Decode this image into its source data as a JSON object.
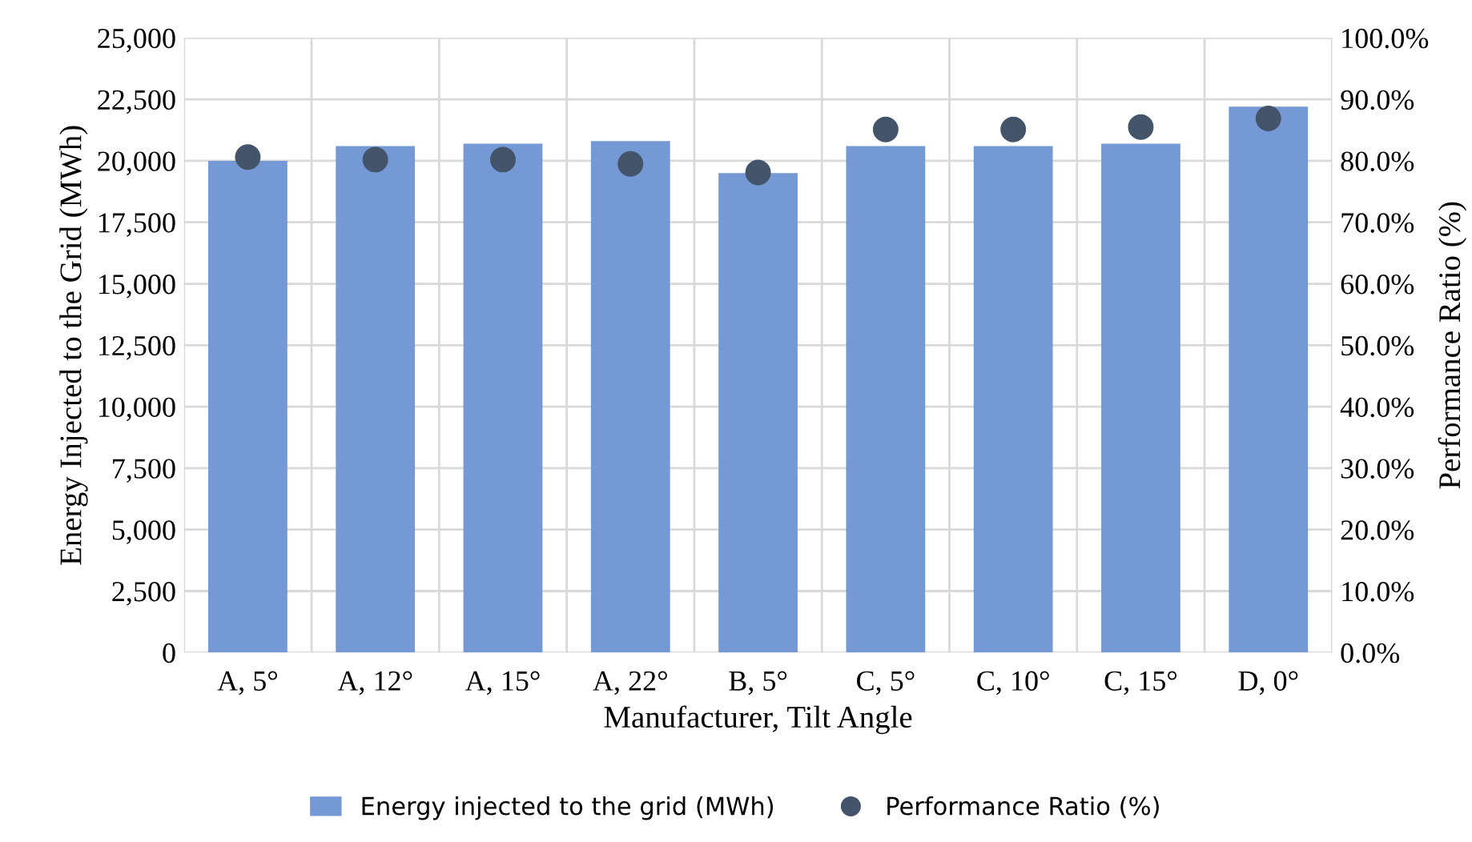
{
  "chart_data": {
    "type": "bar",
    "xlabel": "Manufacturer, Tilt Angle",
    "ylabel": "Energy Injected to the Grid (MWh)",
    "y2label": "Performance Ratio (%)",
    "categories": [
      "A, 5°",
      "A, 12°",
      "A, 15°",
      "A, 22°",
      "B, 5°",
      "C, 5°",
      "C, 10°",
      "C, 15°",
      "D, 0°"
    ],
    "series": [
      {
        "name": "Energy injected to the grid (MWh)",
        "color": "#7499d5",
        "values": [
          20000,
          20600,
          20700,
          20800,
          19500,
          20600,
          20600,
          20700,
          22200
        ]
      },
      {
        "name": "Performance Ratio (%)",
        "type": "scatter",
        "axis": "y2",
        "color": "#44546a",
        "values": [
          80.6,
          80.2,
          80.2,
          79.5,
          78.1,
          85.1,
          85.1,
          85.5,
          86.9
        ]
      }
    ],
    "ylim": [
      0,
      25000
    ],
    "yticks": [
      {
        "value": 0,
        "label": "0"
      },
      {
        "value": 2500,
        "label": "2,500"
      },
      {
        "value": 5000,
        "label": "5,000"
      },
      {
        "value": 7500,
        "label": "7,500"
      },
      {
        "value": 10000,
        "label": "10,000"
      },
      {
        "value": 12500,
        "label": "12,500"
      },
      {
        "value": 15000,
        "label": "15,000"
      },
      {
        "value": 17500,
        "label": "17,500"
      },
      {
        "value": 20000,
        "label": "20,000"
      },
      {
        "value": 22500,
        "label": "22,500"
      },
      {
        "value": 25000,
        "label": "25,000"
      }
    ],
    "y2lim": [
      0,
      100
    ],
    "y2ticks": [
      {
        "value": 0,
        "label": "0.0%"
      },
      {
        "value": 10,
        "label": "10.0%"
      },
      {
        "value": 20,
        "label": "20.0%"
      },
      {
        "value": 30,
        "label": "30.0%"
      },
      {
        "value": 40,
        "label": "40.0%"
      },
      {
        "value": 50,
        "label": "50.0%"
      },
      {
        "value": 60,
        "label": "60.0%"
      },
      {
        "value": 70,
        "label": "70.0%"
      },
      {
        "value": 80,
        "label": "80.0%"
      },
      {
        "value": 90,
        "label": "90.0%"
      },
      {
        "value": 100,
        "label": "100.0%"
      }
    ],
    "grid": true,
    "legend": "bottom",
    "marker": "circle"
  }
}
